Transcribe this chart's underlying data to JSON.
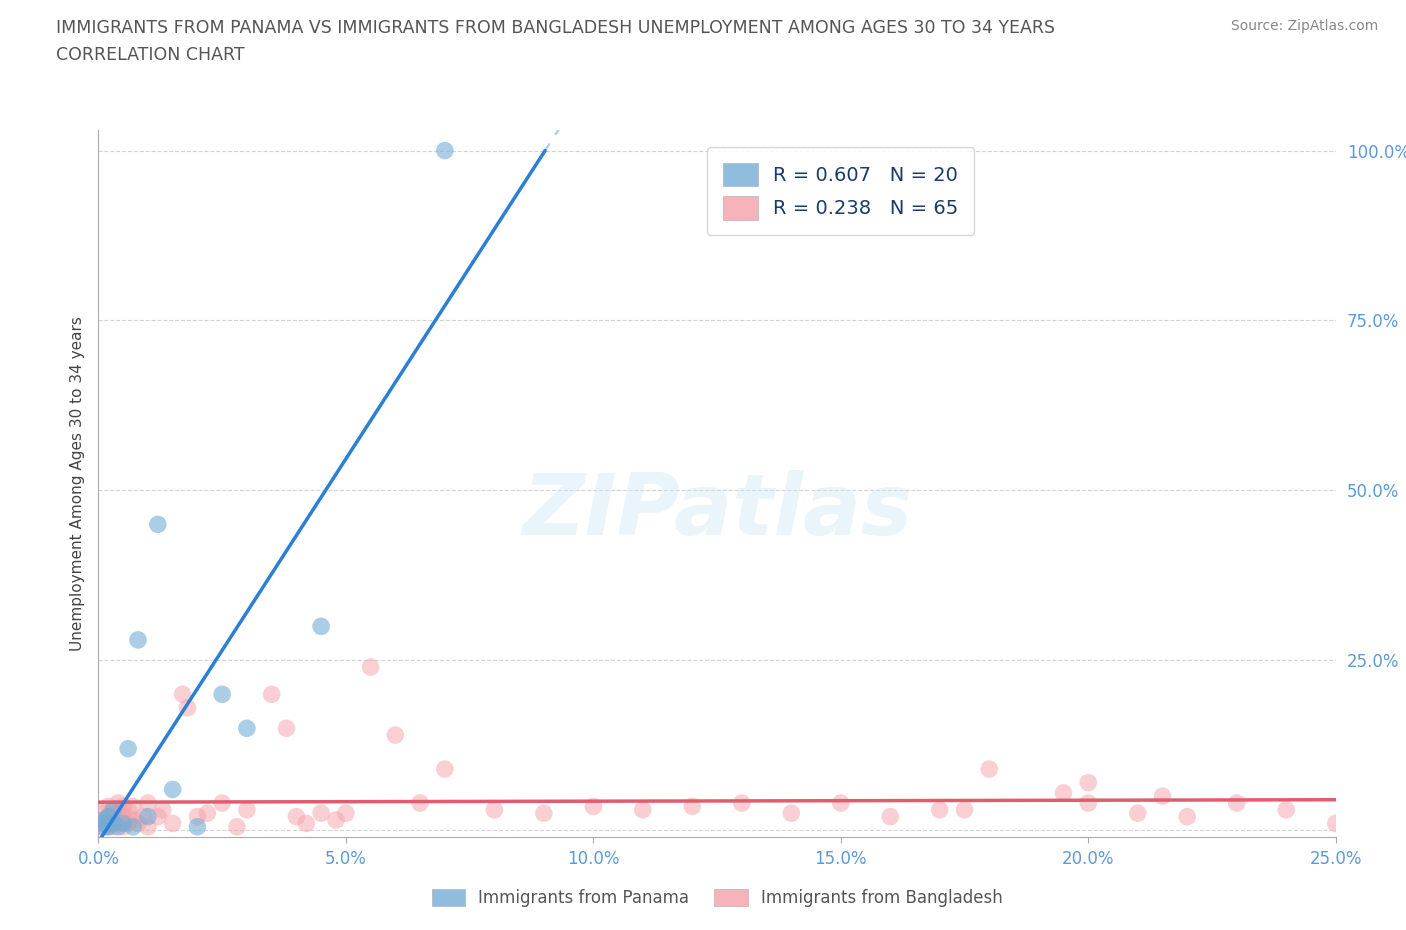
{
  "title_line1": "IMMIGRANTS FROM PANAMA VS IMMIGRANTS FROM BANGLADESH UNEMPLOYMENT AMONG AGES 30 TO 34 YEARS",
  "title_line2": "CORRELATION CHART",
  "source": "Source: ZipAtlas.com",
  "ylabel": "Unemployment Among Ages 30 to 34 years",
  "xlabel_bottom": "Immigrants from Panama",
  "xlim": [
    0.0,
    0.25
  ],
  "ylim": [
    -0.01,
    1.03
  ],
  "xticks": [
    0.0,
    0.05,
    0.1,
    0.15,
    0.2,
    0.25
  ],
  "yticks": [
    0.0,
    0.25,
    0.5,
    0.75,
    1.0
  ],
  "xtick_labels": [
    "0.0%",
    "5.0%",
    "10.0%",
    "15.0%",
    "20.0%",
    "25.0%"
  ],
  "ytick_right_labels": [
    "",
    "25.0%",
    "50.0%",
    "75.0%",
    "100.0%"
  ],
  "panama_color": "#74acd5",
  "bangladesh_color": "#f4a0a8",
  "panama_line_color": "#2b7fd4",
  "bangladesh_line_color": "#e05c6e",
  "panama_dash_color": "#a8cce8",
  "panama_R": 0.607,
  "panama_N": 20,
  "bangladesh_R": 0.238,
  "bangladesh_N": 65,
  "watermark": "ZIPatlas",
  "panama_scatter_x": [
    0.001,
    0.001,
    0.001,
    0.002,
    0.002,
    0.003,
    0.003,
    0.004,
    0.005,
    0.006,
    0.007,
    0.008,
    0.01,
    0.012,
    0.015,
    0.02,
    0.025,
    0.03,
    0.045,
    0.07
  ],
  "panama_scatter_y": [
    0.005,
    0.01,
    0.015,
    0.005,
    0.02,
    0.01,
    0.03,
    0.005,
    0.01,
    0.12,
    0.005,
    0.28,
    0.02,
    0.45,
    0.06,
    0.005,
    0.2,
    0.15,
    0.3,
    1.0
  ],
  "bangladesh_scatter_x": [
    0.001,
    0.001,
    0.001,
    0.002,
    0.002,
    0.002,
    0.003,
    0.003,
    0.003,
    0.004,
    0.004,
    0.004,
    0.005,
    0.005,
    0.005,
    0.006,
    0.006,
    0.007,
    0.007,
    0.008,
    0.009,
    0.01,
    0.01,
    0.012,
    0.013,
    0.015,
    0.017,
    0.018,
    0.02,
    0.022,
    0.025,
    0.028,
    0.03,
    0.035,
    0.038,
    0.04,
    0.042,
    0.045,
    0.048,
    0.05,
    0.055,
    0.06,
    0.065,
    0.07,
    0.08,
    0.09,
    0.1,
    0.11,
    0.12,
    0.13,
    0.14,
    0.15,
    0.16,
    0.17,
    0.18,
    0.2,
    0.21,
    0.22,
    0.23,
    0.24,
    0.25,
    0.2,
    0.175,
    0.195,
    0.215
  ],
  "bangladesh_scatter_y": [
    0.005,
    0.015,
    0.03,
    0.005,
    0.02,
    0.035,
    0.005,
    0.015,
    0.03,
    0.01,
    0.025,
    0.04,
    0.005,
    0.02,
    0.035,
    0.01,
    0.03,
    0.015,
    0.035,
    0.01,
    0.02,
    0.005,
    0.04,
    0.02,
    0.03,
    0.01,
    0.2,
    0.18,
    0.02,
    0.025,
    0.04,
    0.005,
    0.03,
    0.2,
    0.15,
    0.02,
    0.01,
    0.025,
    0.015,
    0.025,
    0.24,
    0.14,
    0.04,
    0.09,
    0.03,
    0.025,
    0.035,
    0.03,
    0.035,
    0.04,
    0.025,
    0.04,
    0.02,
    0.03,
    0.09,
    0.04,
    0.025,
    0.02,
    0.04,
    0.03,
    0.01,
    0.07,
    0.03,
    0.055,
    0.05
  ]
}
